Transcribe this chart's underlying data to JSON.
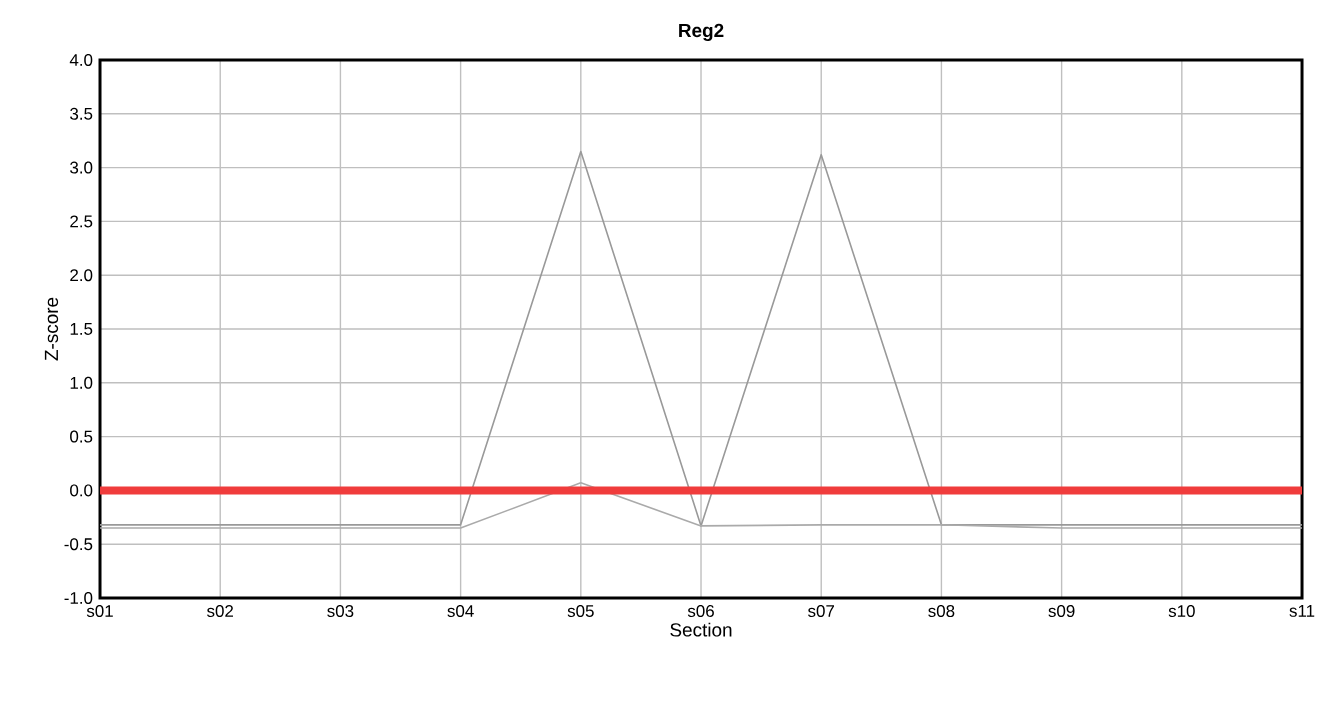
{
  "chart_data": {
    "type": "line",
    "title": "Reg2",
    "xlabel": "Section",
    "ylabel": "Z-score",
    "categories": [
      "s01",
      "s02",
      "s03",
      "s04",
      "s05",
      "s06",
      "s07",
      "s08",
      "s09",
      "s10",
      "s11"
    ],
    "series": [
      {
        "color": "#999999",
        "values": [
          -0.32,
          -0.32,
          -0.32,
          -0.32,
          3.15,
          -0.33,
          3.12,
          -0.32,
          -0.32,
          -0.32,
          -0.32
        ]
      },
      {
        "color": "#aaaaaa",
        "values": [
          -0.35,
          -0.35,
          -0.35,
          -0.35,
          0.07,
          -0.33,
          -0.32,
          -0.32,
          -0.35,
          -0.35,
          -0.35
        ]
      }
    ],
    "ylim": [
      -1.0,
      4.0
    ],
    "yticks": [
      {
        "value": -1.0,
        "label": "-1.0"
      },
      {
        "value": -0.5,
        "label": "-0.5"
      },
      {
        "value": 0,
        "label": "0.0"
      },
      {
        "value": 0.5,
        "label": "0.5"
      },
      {
        "value": 1.0,
        "label": "1.0"
      },
      {
        "value": 1.5,
        "label": "1.5"
      },
      {
        "value": 2.0,
        "label": "2.0"
      },
      {
        "value": 2.5,
        "label": "2.5"
      },
      {
        "value": 3.0,
        "label": "3.0"
      },
      {
        "value": 3.5,
        "label": "3.5"
      },
      {
        "value": 4.0,
        "label": "4.0"
      }
    ],
    "ref_lines": [
      {
        "axis": "y",
        "value": 0,
        "color": "#f03c3c"
      }
    ],
    "grid": true,
    "marker": "none",
    "line_style": "solid"
  }
}
